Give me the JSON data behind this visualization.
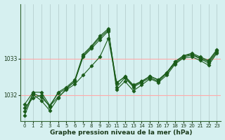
{
  "xlabel": "Graphe pression niveau de la mer (hPa)",
  "background_color": "#d6f0f0",
  "grid_color_h": "#ffaaaa",
  "grid_color_v": "#b0c8c8",
  "line_color": "#1a5c1a",
  "ylim": [
    1031.3,
    1034.5
  ],
  "xlim": [
    -0.5,
    23.5
  ],
  "yticks": [
    1032,
    1033
  ],
  "xticks": [
    0,
    1,
    2,
    3,
    4,
    5,
    6,
    7,
    8,
    9,
    10,
    11,
    12,
    13,
    14,
    15,
    16,
    17,
    18,
    19,
    20,
    21,
    22,
    23
  ],
  "series": [
    [
      1031.55,
      1032.05,
      1031.95,
      1031.7,
      1031.95,
      1032.15,
      1032.3,
      1032.55,
      1032.8,
      1033.05,
      1033.55,
      1032.35,
      1032.5,
      1032.25,
      1032.38,
      1032.52,
      1032.42,
      1032.62,
      1032.92,
      1033.08,
      1033.12,
      1033.02,
      1032.92,
      1033.22
    ],
    [
      1031.75,
      1032.08,
      1032.08,
      1031.72,
      1032.05,
      1032.18,
      1032.38,
      1033.05,
      1033.28,
      1033.52,
      1033.75,
      1032.32,
      1032.52,
      1032.28,
      1032.38,
      1032.52,
      1032.42,
      1032.62,
      1032.92,
      1033.08,
      1033.15,
      1033.05,
      1032.95,
      1033.25
    ],
    [
      1031.65,
      1031.92,
      1032.0,
      1031.68,
      1032.08,
      1032.22,
      1032.42,
      1033.12,
      1033.35,
      1033.62,
      1033.82,
      1032.22,
      1032.48,
      1032.22,
      1032.35,
      1032.48,
      1032.38,
      1032.6,
      1032.88,
      1033.05,
      1033.1,
      1033.0,
      1032.88,
      1033.18
    ],
    [
      1031.45,
      1032.02,
      1031.85,
      1031.58,
      1031.92,
      1032.18,
      1032.38,
      1033.08,
      1033.32,
      1033.58,
      1033.78,
      1032.15,
      1032.38,
      1032.12,
      1032.28,
      1032.45,
      1032.35,
      1032.55,
      1032.85,
      1033.02,
      1033.05,
      1032.95,
      1032.82,
      1033.15
    ]
  ]
}
